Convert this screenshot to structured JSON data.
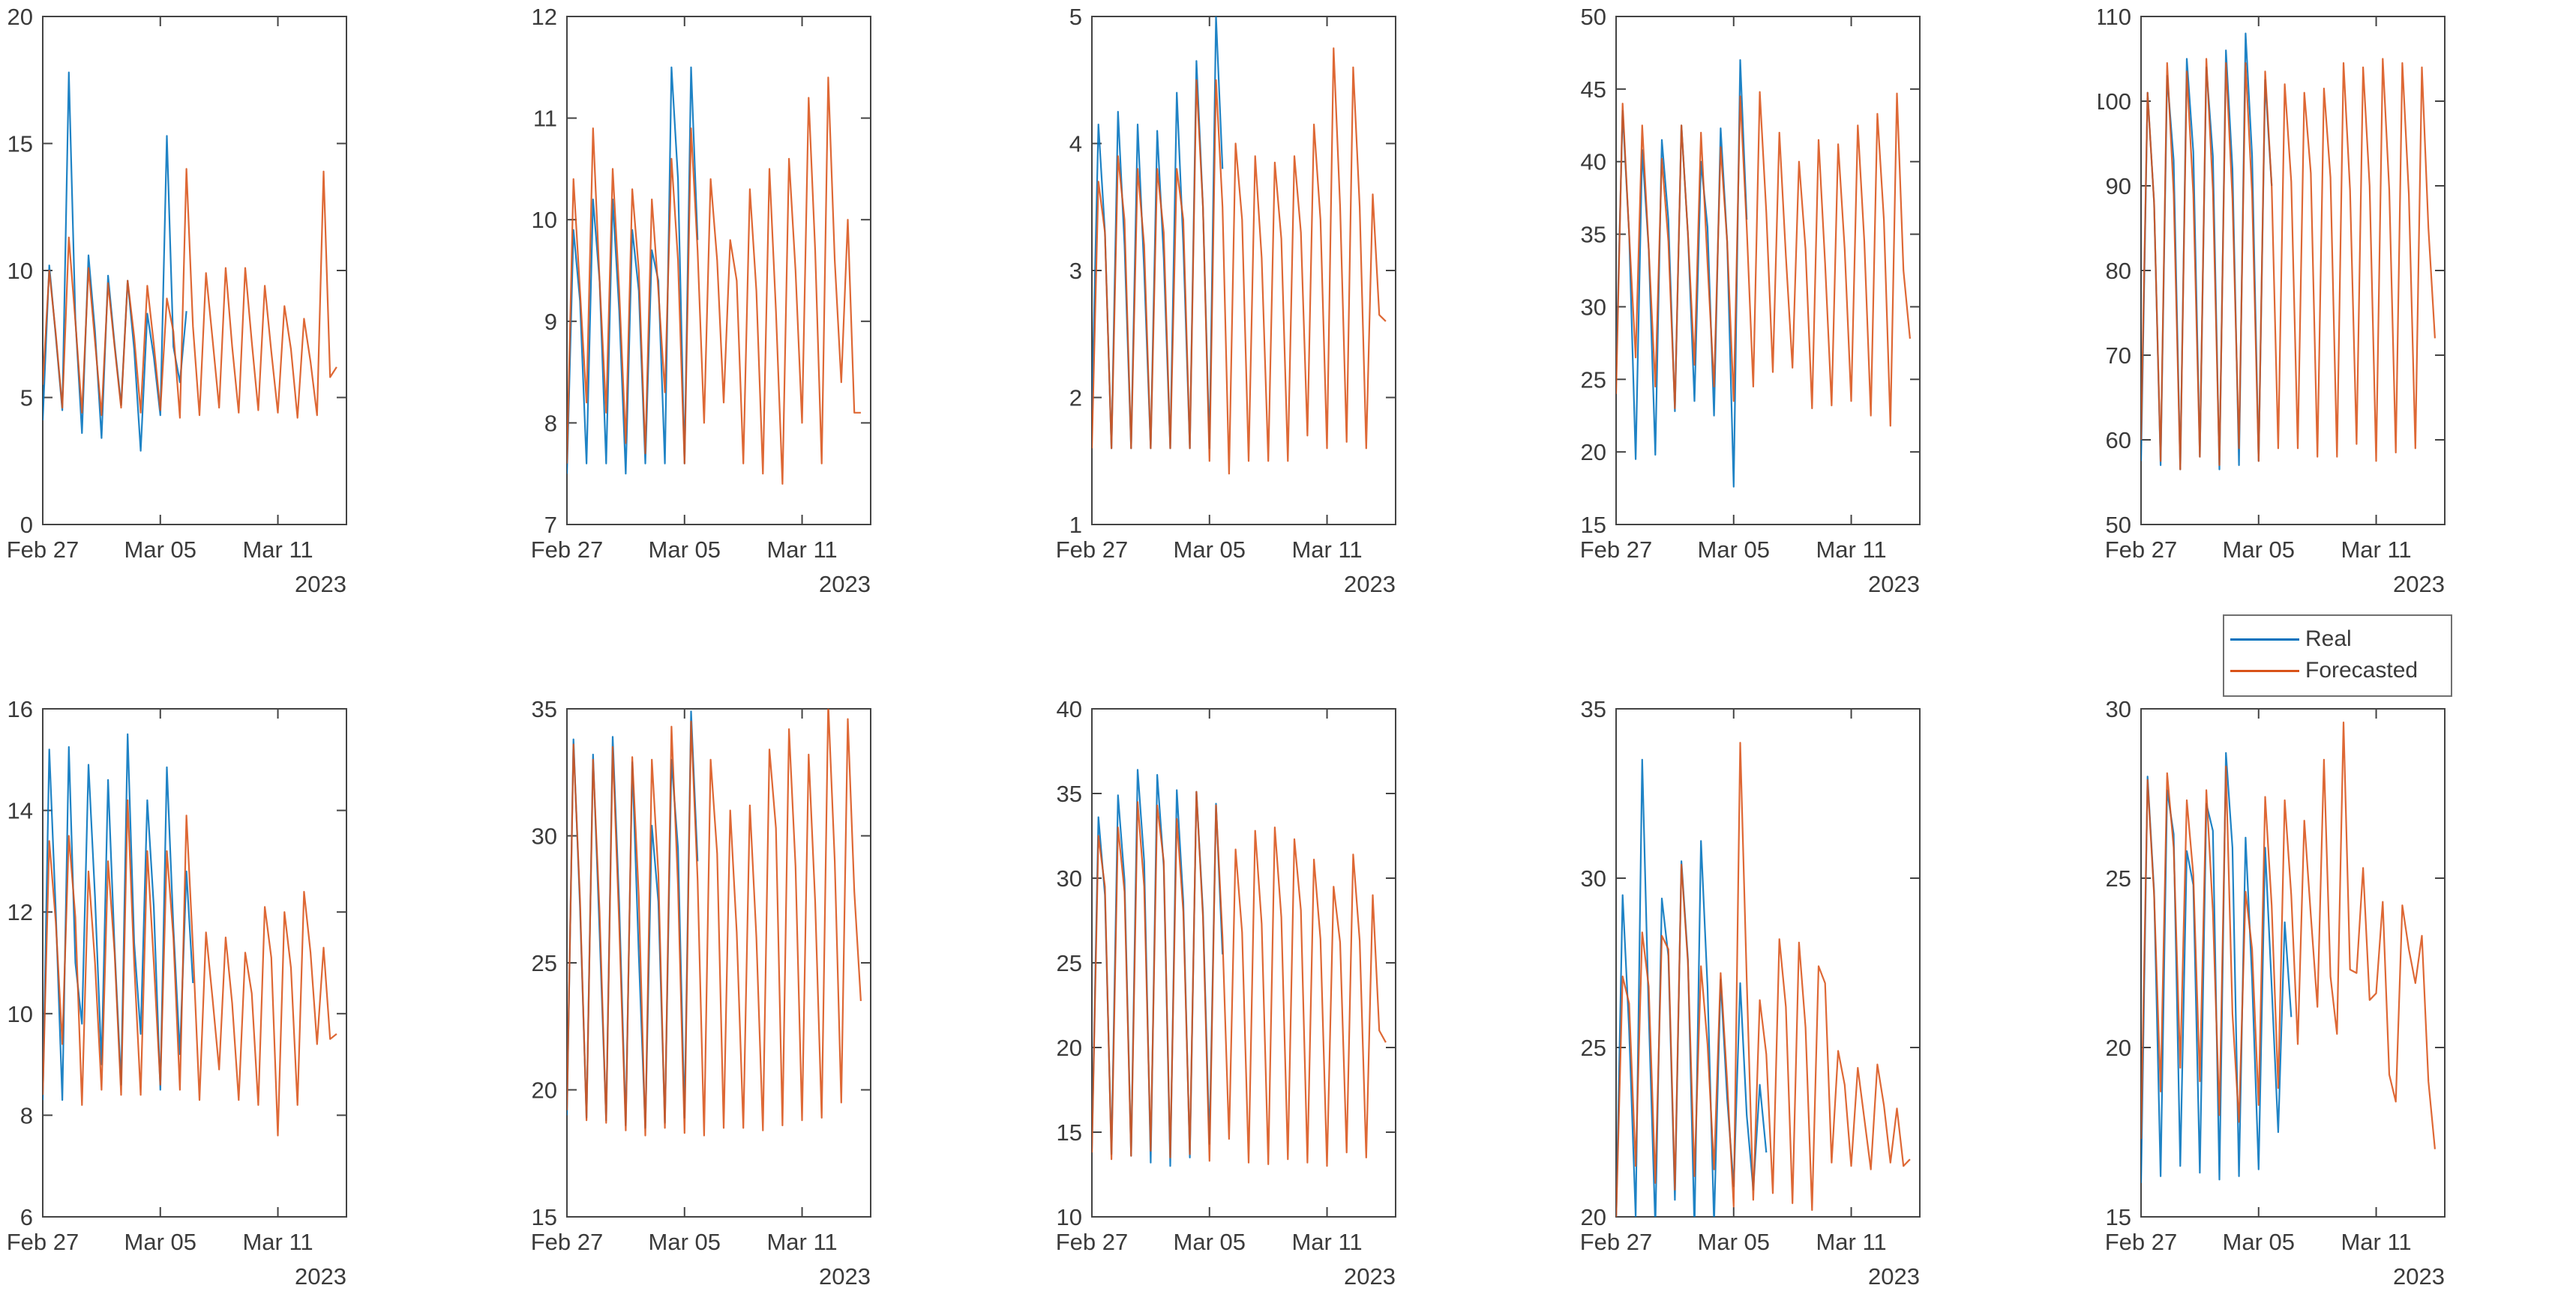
{
  "figure": {
    "background": "#ffffff"
  },
  "legend": {
    "entries": [
      {
        "label": "Real",
        "color": "#0072BD"
      },
      {
        "label": "Forecasted",
        "color": "#D95319"
      }
    ]
  },
  "axis": {
    "xtick_labels": [
      "Feb 27",
      "Mar 05",
      "Mar 11"
    ],
    "xtick_days": [
      0,
      6,
      12
    ],
    "year_label": "2023",
    "xlim": [
      0,
      15.5
    ],
    "x_unit": "days since 2023-02-27",
    "tick_color": "#444444",
    "label_color": "#3b3b3b"
  },
  "chart_data": [
    {
      "type": "line",
      "row": 1,
      "col": 1,
      "name": "r1c1",
      "ylim": [
        0,
        20
      ],
      "yticks": [
        0,
        5,
        10,
        15,
        20
      ],
      "series": [
        {
          "name": "Real",
          "color": "#0072BD",
          "x0": 0,
          "dx": 0.33333,
          "y": [
            4.1,
            10.2,
            7.4,
            4.5,
            17.8,
            8.1,
            3.6,
            10.6,
            7.6,
            3.4,
            9.8,
            7.1,
            4.7,
            9.6,
            6.9,
            2.9,
            8.3,
            6.6,
            4.3,
            15.3,
            7.0,
            5.6,
            8.4
          ]
        },
        {
          "name": "Forecasted",
          "color": "#D95319",
          "x0": 0,
          "dx": 0.33333,
          "y": [
            5.5,
            10.0,
            7.5,
            4.6,
            11.3,
            8.0,
            4.4,
            10.1,
            7.2,
            4.3,
            9.5,
            7.0,
            4.6,
            9.6,
            7.4,
            4.4,
            9.4,
            7.1,
            4.5,
            8.9,
            7.6,
            4.2,
            14.0,
            7.8,
            4.3,
            9.9,
            7.3,
            4.6,
            10.1,
            7.0,
            4.4,
            10.1,
            7.2,
            4.5,
            9.4,
            6.8,
            4.4,
            8.6,
            6.9,
            4.2,
            8.1,
            6.4,
            4.3,
            13.9,
            5.8,
            6.2
          ]
        }
      ]
    },
    {
      "type": "line",
      "row": 1,
      "col": 2,
      "name": "r1c2",
      "ylim": [
        7,
        12
      ],
      "yticks": [
        7,
        8,
        9,
        10,
        11,
        12
      ],
      "series": [
        {
          "name": "Real",
          "color": "#0072BD",
          "x0": 0,
          "dx": 0.33333,
          "y": [
            7.5,
            9.9,
            9.2,
            7.6,
            10.2,
            9.4,
            7.6,
            10.2,
            9.1,
            7.5,
            9.9,
            9.3,
            7.6,
            9.7,
            9.4,
            7.6,
            11.5,
            10.4,
            7.6,
            11.5,
            9.8
          ]
        },
        {
          "name": "Forecasted",
          "color": "#D95319",
          "x0": 0,
          "dx": 0.33333,
          "y": [
            7.6,
            10.4,
            9.3,
            8.2,
            10.9,
            9.4,
            8.1,
            10.5,
            9.3,
            7.8,
            10.3,
            9.5,
            7.7,
            10.2,
            9.3,
            8.3,
            10.6,
            9.6,
            7.6,
            10.9,
            9.7,
            8.0,
            10.4,
            9.6,
            8.2,
            9.8,
            9.4,
            7.6,
            10.3,
            9.3,
            7.5,
            10.5,
            9.1,
            7.4,
            10.6,
            9.5,
            8.0,
            11.2,
            9.7,
            7.6,
            11.4,
            9.6,
            8.4,
            10.0,
            8.1,
            8.1
          ]
        }
      ]
    },
    {
      "type": "line",
      "row": 1,
      "col": 3,
      "name": "r1c3",
      "ylim": [
        1,
        5
      ],
      "yticks": [
        1,
        2,
        3,
        4,
        5
      ],
      "series": [
        {
          "name": "Real",
          "color": "#0072BD",
          "x0": 0,
          "dx": 0.33333,
          "y": [
            1.9,
            4.15,
            3.3,
            1.6,
            4.25,
            3.2,
            1.6,
            4.15,
            3.0,
            1.6,
            4.1,
            3.1,
            1.6,
            4.4,
            3.2,
            1.6,
            4.65,
            3.5,
            1.6,
            5.0,
            3.8
          ]
        },
        {
          "name": "Forecasted",
          "color": "#D95319",
          "x0": 0,
          "dx": 0.33333,
          "y": [
            1.6,
            3.7,
            3.3,
            1.6,
            3.9,
            3.4,
            1.6,
            3.8,
            3.2,
            1.6,
            3.8,
            3.3,
            1.6,
            3.8,
            3.4,
            1.6,
            4.5,
            3.5,
            1.5,
            4.5,
            3.5,
            1.4,
            4.0,
            3.4,
            1.5,
            3.9,
            3.1,
            1.5,
            3.85,
            3.25,
            1.5,
            3.9,
            3.3,
            1.7,
            4.15,
            3.4,
            1.6,
            4.75,
            3.5,
            1.65,
            4.6,
            3.5,
            1.6,
            3.6,
            2.65,
            2.6
          ]
        }
      ]
    },
    {
      "type": "line",
      "row": 1,
      "col": 4,
      "name": "r1c4",
      "ylim": [
        15,
        50
      ],
      "yticks": [
        15,
        20,
        25,
        30,
        35,
        40,
        45,
        50
      ],
      "series": [
        {
          "name": "Real",
          "color": "#0072BD",
          "x0": 0,
          "dx": 0.33333,
          "y": [
            25.5,
            43.5,
            35,
            19.5,
            40.8,
            34,
            19.8,
            41.5,
            36,
            22.8,
            42.5,
            35,
            23.5,
            40.0,
            35.5,
            22.5,
            42.3,
            34.5,
            17.6,
            47.0,
            36.0
          ]
        },
        {
          "name": "Forecasted",
          "color": "#D95319",
          "x0": 0,
          "dx": 0.33333,
          "y": [
            24,
            44,
            35,
            26.5,
            42.5,
            34,
            24.5,
            40.2,
            34.5,
            23,
            42.5,
            35,
            26,
            42,
            33,
            24.5,
            41,
            34.5,
            23.5,
            44.5,
            35.5,
            24.5,
            44.8,
            36.5,
            25.5,
            42,
            33.5,
            25.8,
            40,
            34,
            23,
            41.5,
            33,
            23.2,
            41.2,
            34,
            23.5,
            42.5,
            34.5,
            22.5,
            43.3,
            36,
            21.8,
            44.7,
            32.5,
            27.8
          ]
        }
      ]
    },
    {
      "type": "line",
      "row": 1,
      "col": 5,
      "name": "r1c5",
      "ylim": [
        50,
        110
      ],
      "yticks": [
        50,
        60,
        70,
        80,
        90,
        100,
        110
      ],
      "series": [
        {
          "name": "Real",
          "color": "#0072BD",
          "x0": 0,
          "dx": 0.33333,
          "y": [
            57.5,
            101,
            88,
            57,
            103,
            93,
            56.5,
            105,
            94,
            58,
            104,
            93.5,
            56.5,
            106,
            92,
            57,
            108,
            93.5,
            57.5,
            102.5,
            90
          ]
        },
        {
          "name": "Forecasted",
          "color": "#D95319",
          "x0": 0,
          "dx": 0.33333,
          "y": [
            60,
            101,
            88,
            57.5,
            104.5,
            89,
            56.5,
            103.5,
            89,
            58,
            105,
            89.5,
            57,
            104.5,
            88.5,
            59,
            104.5,
            89,
            57.5,
            103.5,
            90,
            59,
            102,
            90.5,
            59,
            101,
            91.5,
            58,
            101.5,
            91,
            58,
            104.5,
            89.5,
            59.5,
            104,
            90,
            57.5,
            105,
            89.5,
            58.5,
            104.5,
            89,
            59,
            104,
            85,
            72
          ]
        }
      ]
    },
    {
      "type": "line",
      "row": 2,
      "col": 1,
      "name": "r2c1",
      "ylim": [
        6,
        16
      ],
      "yticks": [
        6,
        8,
        10,
        12,
        14,
        16
      ],
      "series": [
        {
          "name": "Real",
          "color": "#0072BD",
          "x0": 0,
          "dx": 0.33333,
          "y": [
            8.3,
            15.2,
            12.0,
            8.3,
            15.25,
            11.0,
            9.8,
            14.9,
            12.3,
            9.0,
            14.6,
            11.3,
            8.6,
            15.5,
            11.4,
            9.6,
            14.2,
            12.1,
            8.5,
            14.85,
            11.7,
            9.2,
            12.8,
            10.6
          ]
        },
        {
          "name": "Forecasted",
          "color": "#D95319",
          "x0": 0,
          "dx": 0.33333,
          "y": [
            8.4,
            13.4,
            11.8,
            9.4,
            13.5,
            11.9,
            8.2,
            12.8,
            11.0,
            8.5,
            13.0,
            11.2,
            8.4,
            14.2,
            11.0,
            8.4,
            13.2,
            11.0,
            8.6,
            13.2,
            11.5,
            8.5,
            13.9,
            11.3,
            8.3,
            11.6,
            10.3,
            8.9,
            11.5,
            10.2,
            8.3,
            11.2,
            10.4,
            8.2,
            12.1,
            11.1,
            7.6,
            12.0,
            10.9,
            8.2,
            12.4,
            11.2,
            9.4,
            11.3,
            9.5,
            9.6
          ]
        }
      ]
    },
    {
      "type": "line",
      "row": 2,
      "col": 2,
      "name": "r2c2",
      "ylim": [
        15,
        35
      ],
      "yticks": [
        15,
        20,
        25,
        30,
        35
      ],
      "series": [
        {
          "name": "Real",
          "color": "#0072BD",
          "x0": 0,
          "dx": 0.33333,
          "y": [
            19.0,
            33.8,
            27.2,
            18.9,
            33.2,
            26.2,
            18.8,
            33.9,
            27.3,
            18.6,
            32.9,
            25.3,
            18.5,
            30.4,
            27.4,
            18.7,
            33.0,
            29.5,
            18.9,
            34.9,
            29.0
          ]
        },
        {
          "name": "Forecasted",
          "color": "#D95319",
          "x0": 0,
          "dx": 0.33333,
          "y": [
            19.2,
            33.6,
            27.5,
            18.8,
            33.0,
            27.0,
            18.7,
            33.5,
            26.5,
            18.4,
            33.1,
            27.6,
            18.2,
            33.0,
            28.5,
            18.5,
            34.3,
            28.0,
            18.3,
            34.5,
            28.3,
            18.2,
            33.0,
            29.3,
            18.5,
            31.0,
            26.2,
            18.5,
            31.2,
            26.0,
            18.4,
            33.4,
            30.3,
            18.6,
            34.2,
            28.8,
            18.8,
            33.2,
            27.4,
            18.9,
            35.2,
            29.0,
            19.5,
            34.6,
            27.8,
            23.5
          ]
        }
      ]
    },
    {
      "type": "line",
      "row": 2,
      "col": 3,
      "name": "r2c3",
      "ylim": [
        10,
        40
      ],
      "yticks": [
        10,
        15,
        20,
        25,
        30,
        35,
        40
      ],
      "series": [
        {
          "name": "Real",
          "color": "#0072BD",
          "x0": 0,
          "dx": 0.33333,
          "y": [
            14.0,
            33.6,
            29.0,
            13.7,
            34.9,
            29.9,
            13.6,
            36.4,
            31.0,
            13.2,
            36.1,
            30.7,
            13.0,
            35.2,
            28.6,
            13.5,
            35.1,
            28.0,
            14.3,
            34.4,
            25.5
          ]
        },
        {
          "name": "Forecasted",
          "color": "#D95319",
          "x0": 0,
          "dx": 0.33333,
          "y": [
            13.8,
            32.5,
            29.5,
            13.4,
            33.0,
            29.2,
            13.6,
            34.5,
            29.5,
            13.9,
            34.3,
            31.0,
            13.5,
            33.5,
            28.0,
            13.7,
            35.1,
            27.7,
            13.3,
            34.3,
            26.5,
            14.6,
            31.7,
            26.8,
            13.2,
            32.8,
            27.3,
            13.1,
            33.0,
            27.7,
            13.4,
            32.3,
            28.1,
            13.2,
            31.1,
            26.4,
            13.0,
            29.5,
            26.2,
            13.8,
            31.4,
            26.3,
            13.5,
            29.0,
            21.0,
            20.3
          ]
        }
      ]
    },
    {
      "type": "line",
      "row": 2,
      "col": 4,
      "name": "r2c4",
      "ylim": [
        20,
        35
      ],
      "yticks": [
        20,
        25,
        30,
        35
      ],
      "series": [
        {
          "name": "Real",
          "color": "#0072BD",
          "x0": 0,
          "dx": 0.33333,
          "y": [
            19.8,
            29.5,
            25.5,
            20.0,
            33.5,
            26.0,
            19.7,
            29.4,
            27.7,
            20.5,
            30.5,
            27.6,
            19.6,
            31.1,
            26.8,
            19.8,
            27.0,
            23.5,
            20.9,
            26.9,
            23.0,
            20.8,
            23.9,
            21.9
          ]
        },
        {
          "name": "Forecasted",
          "color": "#D95319",
          "x0": 0,
          "dx": 0.33333,
          "y": [
            19.9,
            27.1,
            26.3,
            21.5,
            28.4,
            26.8,
            21.0,
            28.3,
            27.9,
            20.8,
            30.4,
            27.5,
            21.2,
            27.4,
            25.1,
            21.4,
            27.2,
            24.0,
            20.3,
            34.0,
            27.0,
            20.5,
            26.4,
            24.8,
            20.7,
            28.2,
            26.2,
            20.4,
            28.1,
            25.6,
            20.2,
            27.4,
            26.9,
            21.6,
            24.9,
            23.9,
            21.5,
            24.4,
            22.9,
            21.4,
            24.5,
            23.3,
            21.6,
            23.2,
            21.5,
            21.7
          ]
        }
      ]
    },
    {
      "type": "line",
      "row": 2,
      "col": 5,
      "name": "r2c5",
      "ylim": [
        15,
        30
      ],
      "yticks": [
        15,
        20,
        25,
        30
      ],
      "series": [
        {
          "name": "Real",
          "color": "#0072BD",
          "x0": 0,
          "dx": 0.33333,
          "y": [
            16.0,
            28.0,
            24.6,
            16.2,
            27.6,
            26.3,
            16.5,
            25.8,
            24.8,
            16.3,
            27.2,
            26.4,
            16.1,
            28.7,
            25.9,
            16.2,
            26.2,
            22.0,
            16.4,
            25.9,
            21.8,
            17.5,
            23.7,
            20.9
          ]
        },
        {
          "name": "Forecasted",
          "color": "#D95319",
          "x0": 0,
          "dx": 0.33333,
          "y": [
            17.3,
            27.9,
            24.5,
            18.7,
            28.1,
            25.9,
            19.4,
            27.3,
            25.1,
            19.0,
            27.6,
            24.0,
            18.0,
            28.3,
            21.0,
            17.8,
            24.6,
            22.9,
            18.3,
            27.4,
            24.2,
            18.8,
            27.3,
            24.5,
            20.1,
            26.7,
            23.9,
            21.2,
            28.5,
            22.1,
            20.4,
            29.6,
            22.3,
            22.2,
            25.3,
            21.4,
            21.6,
            24.3,
            19.2,
            18.4,
            24.2,
            22.9,
            21.9,
            23.3,
            19.0,
            17.0
          ]
        }
      ]
    }
  ]
}
